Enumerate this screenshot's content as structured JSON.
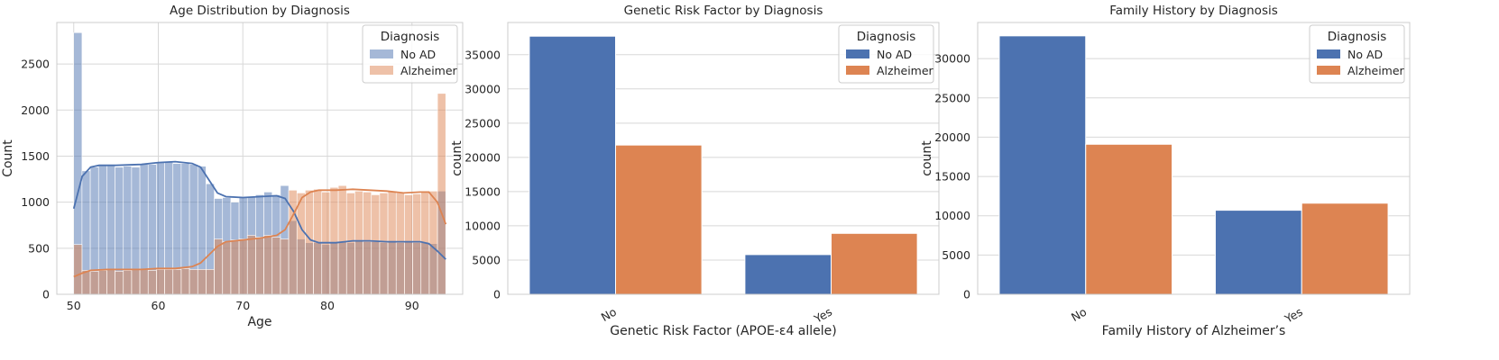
{
  "chart_data": [
    {
      "type": "histogram",
      "title": "Age Distribution by Diagnosis",
      "xlabel": "Age",
      "ylabel": "Count",
      "xlim": [
        48,
        96
      ],
      "ylim": [
        0,
        2950
      ],
      "xticks": [
        50,
        60,
        70,
        80,
        90
      ],
      "yticks": [
        0,
        500,
        1000,
        1500,
        2000,
        2500
      ],
      "grid": true,
      "legend": {
        "title": "Diagnosis",
        "position": "top-right"
      },
      "bin_start": 50,
      "bin_width": 1,
      "series": [
        {
          "name": "No AD",
          "color": "#4c72b0",
          "values": [
            2840,
            1340,
            1380,
            1400,
            1400,
            1380,
            1390,
            1380,
            1410,
            1410,
            1430,
            1440,
            1420,
            1420,
            1410,
            1390,
            1200,
            1040,
            1050,
            1000,
            1060,
            1060,
            1080,
            1110,
            1080,
            1180,
            800,
            600,
            560,
            560,
            540,
            560,
            570,
            560,
            580,
            570,
            570,
            560,
            580,
            560,
            580,
            560,
            560,
            550,
            1120
          ]
        },
        {
          "name": "Alzheimer",
          "color": "#dd8452",
          "values": [
            540,
            260,
            250,
            260,
            270,
            250,
            260,
            270,
            270,
            260,
            270,
            270,
            270,
            280,
            270,
            270,
            270,
            600,
            570,
            590,
            600,
            640,
            620,
            640,
            620,
            600,
            1130,
            1100,
            1130,
            1140,
            1110,
            1160,
            1180,
            1100,
            1120,
            1110,
            1080,
            1100,
            1120,
            1100,
            1080,
            1090,
            1110,
            1120,
            2180
          ]
        }
      ],
      "kde": [
        {
          "name": "No AD",
          "color": "#4c72b0",
          "points": [
            [
              50,
              930
            ],
            [
              51,
              1280
            ],
            [
              52,
              1380
            ],
            [
              53,
              1400
            ],
            [
              55,
              1400
            ],
            [
              58,
              1410
            ],
            [
              60,
              1430
            ],
            [
              62,
              1440
            ],
            [
              64,
              1420
            ],
            [
              65,
              1380
            ],
            [
              66,
              1240
            ],
            [
              67,
              1100
            ],
            [
              68,
              1060
            ],
            [
              70,
              1050
            ],
            [
              72,
              1060
            ],
            [
              74,
              1070
            ],
            [
              75,
              1040
            ],
            [
              76,
              900
            ],
            [
              77,
              700
            ],
            [
              78,
              590
            ],
            [
              79,
              560
            ],
            [
              81,
              560
            ],
            [
              83,
              580
            ],
            [
              85,
              580
            ],
            [
              87,
              570
            ],
            [
              89,
              570
            ],
            [
              91,
              570
            ],
            [
              92,
              550
            ],
            [
              93,
              470
            ],
            [
              94,
              380
            ]
          ]
        },
        {
          "name": "Alzheimer",
          "color": "#dd8452",
          "points": [
            [
              50,
              190
            ],
            [
              51,
              230
            ],
            [
              52,
              260
            ],
            [
              54,
              270
            ],
            [
              56,
              270
            ],
            [
              58,
              270
            ],
            [
              60,
              280
            ],
            [
              62,
              280
            ],
            [
              64,
              300
            ],
            [
              65,
              340
            ],
            [
              66,
              430
            ],
            [
              67,
              520
            ],
            [
              68,
              570
            ],
            [
              70,
              590
            ],
            [
              72,
              610
            ],
            [
              74,
              640
            ],
            [
              75,
              700
            ],
            [
              76,
              870
            ],
            [
              77,
              1050
            ],
            [
              78,
              1110
            ],
            [
              79,
              1130
            ],
            [
              81,
              1130
            ],
            [
              83,
              1140
            ],
            [
              85,
              1130
            ],
            [
              87,
              1120
            ],
            [
              89,
              1100
            ],
            [
              91,
              1110
            ],
            [
              92,
              1110
            ],
            [
              93,
              1000
            ],
            [
              94,
              760
            ]
          ]
        }
      ]
    },
    {
      "type": "bar",
      "title": "Genetic Risk Factor by Diagnosis",
      "xlabel": "Genetic Risk Factor (APOE-ε4 allele)",
      "ylabel": "count",
      "categories": [
        "No",
        "Yes"
      ],
      "ylim": [
        0,
        39700
      ],
      "yticks": [
        0,
        5000,
        10000,
        15000,
        20000,
        25000,
        30000,
        35000
      ],
      "grid": true,
      "legend": {
        "title": "Diagnosis",
        "position": "top-right"
      },
      "series": [
        {
          "name": "No AD",
          "color": "#4c72b0",
          "values": [
            37700,
            5800
          ]
        },
        {
          "name": "Alzheimer",
          "color": "#dd8452",
          "values": [
            21800,
            8900
          ]
        }
      ]
    },
    {
      "type": "bar",
      "title": "Family History by Diagnosis",
      "xlabel": "Family History of Alzheimer’s",
      "ylabel": "count",
      "categories": [
        "No",
        "Yes"
      ],
      "ylim": [
        0,
        34600
      ],
      "yticks": [
        0,
        5000,
        10000,
        15000,
        20000,
        25000,
        30000
      ],
      "grid": true,
      "legend": {
        "title": "Diagnosis",
        "position": "top-right"
      },
      "series": [
        {
          "name": "No AD",
          "color": "#4c72b0",
          "values": [
            32900,
            10700
          ]
        },
        {
          "name": "Alzheimer",
          "color": "#dd8452",
          "values": [
            19100,
            11600
          ]
        }
      ]
    }
  ]
}
